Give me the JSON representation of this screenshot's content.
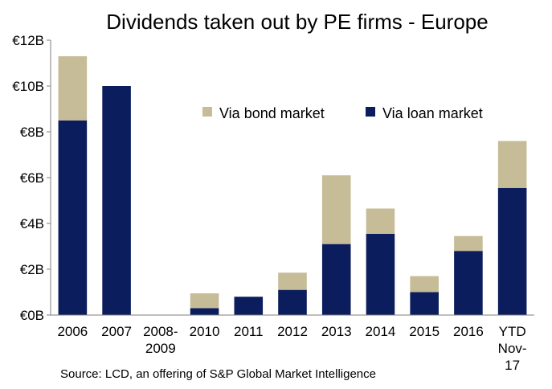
{
  "chart_data": {
    "type": "bar",
    "stacked": true,
    "title": "Dividends taken out by PE firms - Europe",
    "categories": [
      "2006",
      "2007",
      "2008-2009",
      "2010",
      "2011",
      "2012",
      "2013",
      "2014",
      "2015",
      "2016",
      "YTD Nov-17"
    ],
    "category_label_lines": [
      [
        "2006"
      ],
      [
        "2007"
      ],
      [
        "2008-",
        "2009"
      ],
      [
        "2010"
      ],
      [
        "2011"
      ],
      [
        "2012"
      ],
      [
        "2013"
      ],
      [
        "2014"
      ],
      [
        "2015"
      ],
      [
        "2016"
      ],
      [
        "YTD",
        "Nov-",
        "17"
      ]
    ],
    "series": [
      {
        "name": "Via loan market",
        "color": "#0b1d5c",
        "values": [
          8.5,
          10.0,
          0,
          0.3,
          0.8,
          1.1,
          3.1,
          3.55,
          1.0,
          2.8,
          5.55
        ]
      },
      {
        "name": "Via bond market",
        "color": "#c6bc97",
        "values": [
          2.8,
          0,
          0,
          0.65,
          0,
          0.75,
          3.0,
          1.1,
          0.7,
          0.65,
          2.05
        ]
      }
    ],
    "ylim": [
      0,
      12
    ],
    "yticks": [
      0,
      2,
      4,
      6,
      8,
      10,
      12
    ],
    "ytick_labels": [
      "€0B",
      "€2B",
      "€4B",
      "€6B",
      "€8B",
      "€10B",
      "€12B"
    ],
    "legend_placement": "top-center",
    "grid": false
  },
  "source_text": "Source: LCD, an offering of S&P Global Market Intelligence"
}
